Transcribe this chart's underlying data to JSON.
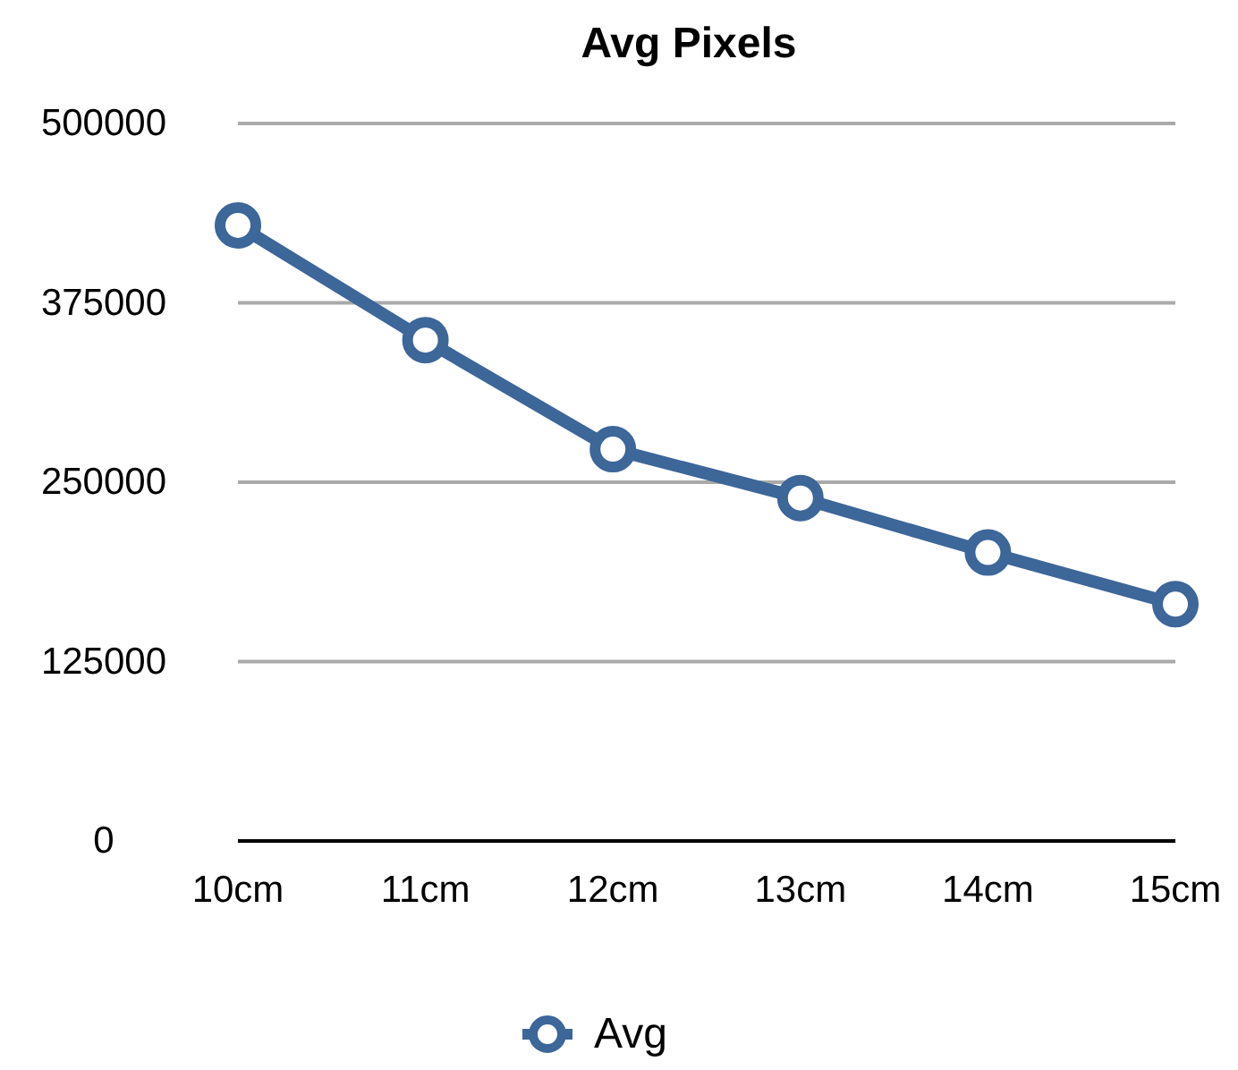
{
  "chart_data": {
    "type": "line",
    "title": "Avg Pixels",
    "categories": [
      "10cm",
      "11cm",
      "12cm",
      "13cm",
      "14cm",
      "15cm"
    ],
    "series": [
      {
        "name": "Avg",
        "color": "#3d6699",
        "values": [
          429000,
          349000,
          273000,
          239000,
          201000,
          165000
        ]
      }
    ],
    "ylim": [
      0,
      500000
    ],
    "yticks": [
      0,
      125000,
      250000,
      375000,
      500000
    ],
    "grid": "y",
    "legend": "bottom",
    "marker": "circle",
    "line_style": "solid"
  }
}
